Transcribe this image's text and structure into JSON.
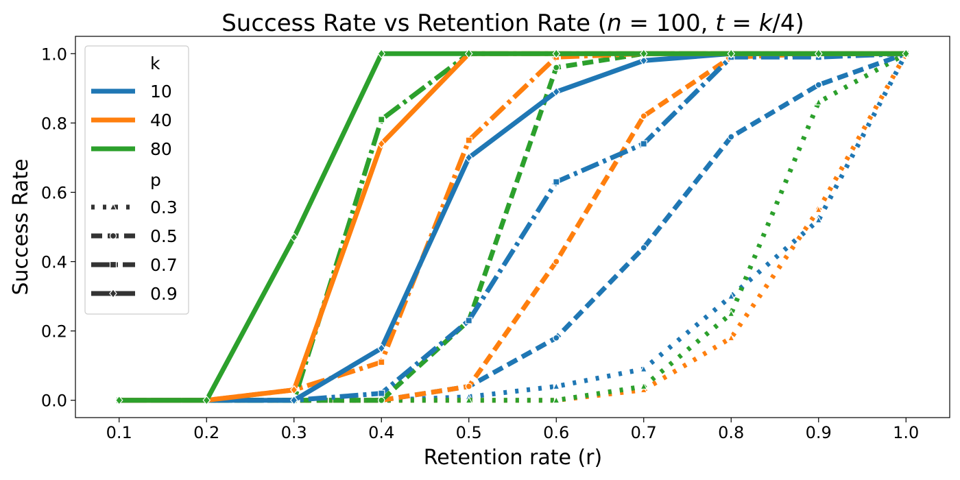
{
  "chart_data": {
    "type": "line",
    "title": "Success Rate vs Retention Rate (n = 100, t = k/4)",
    "title_parts": {
      "prefix": "Success Rate vs Retention Rate (",
      "n_var": "n",
      "n_eq": " = 100, ",
      "t_var": "t",
      "t_eq": " = ",
      "k_var": "k",
      "suffix": "/4)"
    },
    "xlabel": "Retention rate (r)",
    "ylabel": "Success Rate",
    "xlim": [
      0.05,
      1.05
    ],
    "ylim": [
      -0.05,
      1.05
    ],
    "x": [
      0.1,
      0.2,
      0.3,
      0.4,
      0.5,
      0.6,
      0.7,
      0.8,
      0.9,
      1.0
    ],
    "x_ticks": [
      "0.1",
      "0.2",
      "0.3",
      "0.4",
      "0.5",
      "0.6",
      "0.7",
      "0.8",
      "0.9",
      "1.0"
    ],
    "y_ticks": [
      0.0,
      0.2,
      0.4,
      0.6,
      0.8,
      1.0
    ],
    "y_tick_labels": [
      "0.0",
      "0.2",
      "0.4",
      "0.6",
      "0.8",
      "1.0"
    ],
    "k_colors": {
      "10": "#1f77b4",
      "40": "#ff7f0e",
      "80": "#2ca02c"
    },
    "legend": {
      "placement": "top-left",
      "k_title": "k",
      "k_entries": [
        "10",
        "40",
        "80"
      ],
      "p_title": "p",
      "p_entries": [
        "0.3",
        "0.5",
        "0.7",
        "0.9"
      ],
      "line_color": "#333333"
    },
    "series": [
      {
        "name": "k=10, p=0.3",
        "k": "10",
        "p": "0.3",
        "marker": "triangle",
        "values": [
          0,
          0,
          0,
          0,
          0.01,
          0.04,
          0.09,
          0.3,
          0.52,
          1.0
        ]
      },
      {
        "name": "k=10, p=0.5",
        "k": "10",
        "p": "0.5",
        "marker": "circle",
        "values": [
          0,
          0,
          0,
          0,
          0.04,
          0.18,
          0.44,
          0.76,
          0.91,
          1.0
        ]
      },
      {
        "name": "k=10, p=0.7",
        "k": "10",
        "p": "0.7",
        "marker": "square",
        "values": [
          0,
          0,
          0,
          0.02,
          0.23,
          0.63,
          0.74,
          0.99,
          0.99,
          1.0
        ]
      },
      {
        "name": "k=10, p=0.9",
        "k": "10",
        "p": "0.9",
        "marker": "diamond",
        "values": [
          0,
          0,
          0,
          0.15,
          0.7,
          0.89,
          0.98,
          1.0,
          1.0,
          1.0
        ]
      },
      {
        "name": "k=40, p=0.3",
        "k": "40",
        "p": "0.3",
        "marker": "triangle",
        "values": [
          0,
          0,
          0,
          0,
          0,
          0,
          0.03,
          0.18,
          0.55,
          1.0
        ]
      },
      {
        "name": "k=40, p=0.5",
        "k": "40",
        "p": "0.5",
        "marker": "circle",
        "values": [
          0,
          0,
          0,
          0,
          0.04,
          0.4,
          0.82,
          0.99,
          1.0,
          1.0
        ]
      },
      {
        "name": "k=40, p=0.7",
        "k": "40",
        "p": "0.7",
        "marker": "square",
        "values": [
          0,
          0,
          0.03,
          0.11,
          0.75,
          0.99,
          1.0,
          1.0,
          1.0,
          1.0
        ]
      },
      {
        "name": "k=40, p=0.9",
        "k": "40",
        "p": "0.9",
        "marker": "diamond",
        "values": [
          0,
          0,
          0.03,
          0.74,
          1.0,
          1.0,
          1.0,
          1.0,
          1.0,
          1.0
        ]
      },
      {
        "name": "k=80, p=0.3",
        "k": "80",
        "p": "0.3",
        "marker": "triangle",
        "values": [
          0,
          0,
          0,
          0,
          0,
          0,
          0.04,
          0.25,
          0.86,
          1.0
        ]
      },
      {
        "name": "k=80, p=0.5",
        "k": "80",
        "p": "0.5",
        "marker": "circle",
        "values": [
          0,
          0,
          0,
          0,
          0.23,
          0.96,
          1.0,
          1.0,
          1.0,
          1.0
        ]
      },
      {
        "name": "k=80, p=0.7",
        "k": "80",
        "p": "0.7",
        "marker": "square",
        "values": [
          0,
          0,
          0,
          0.81,
          1.0,
          1.0,
          1.0,
          1.0,
          1.0,
          1.0
        ]
      },
      {
        "name": "k=80, p=0.9",
        "k": "80",
        "p": "0.9",
        "marker": "diamond",
        "values": [
          0,
          0,
          0.47,
          1.0,
          1.0,
          1.0,
          1.0,
          1.0,
          1.0,
          1.0
        ]
      }
    ]
  }
}
